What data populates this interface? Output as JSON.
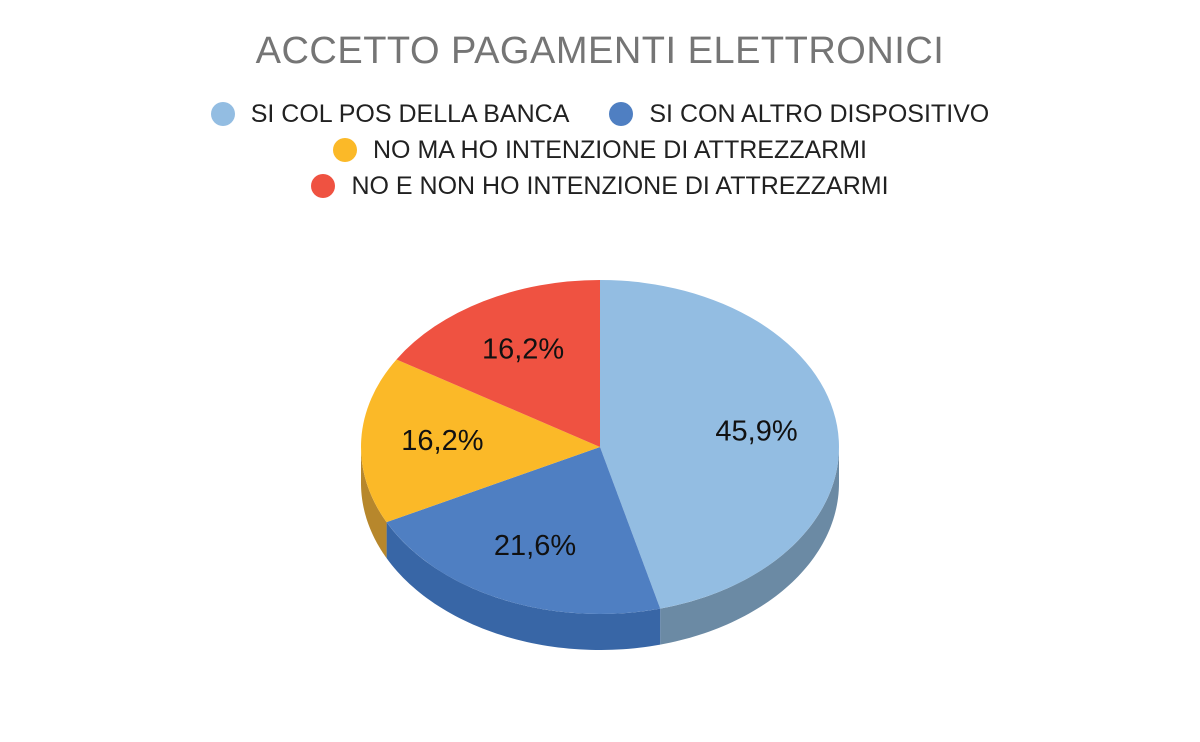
{
  "chart_data": {
    "type": "pie",
    "title": "ACCETTO PAGAMENTI ELETTRONICI",
    "legend_position": "top",
    "three_d": true,
    "slices": [
      {
        "name": "SI COL POS DELLA BANCA",
        "value": 45.9,
        "label": "45,9%",
        "color": "#93bde2",
        "side_color": "#6b8aa4"
      },
      {
        "name": "SI CON ALTRO DISPOSITIVO",
        "value": 21.6,
        "label": "21,6%",
        "color": "#4f7fc2",
        "side_color": "#3866a6"
      },
      {
        "name": "NO MA HO INTENZIONE DI ATTREZZARMI",
        "value": 16.2,
        "label": "16,2%",
        "color": "#fbb928",
        "side_color": "#b7872c"
      },
      {
        "name": "NO E NON HO INTENZIONE DI ATTREZZARMI",
        "value": 16.2,
        "label": "16,2%",
        "color": "#ef5241",
        "side_color": "#b03c30"
      }
    ]
  }
}
